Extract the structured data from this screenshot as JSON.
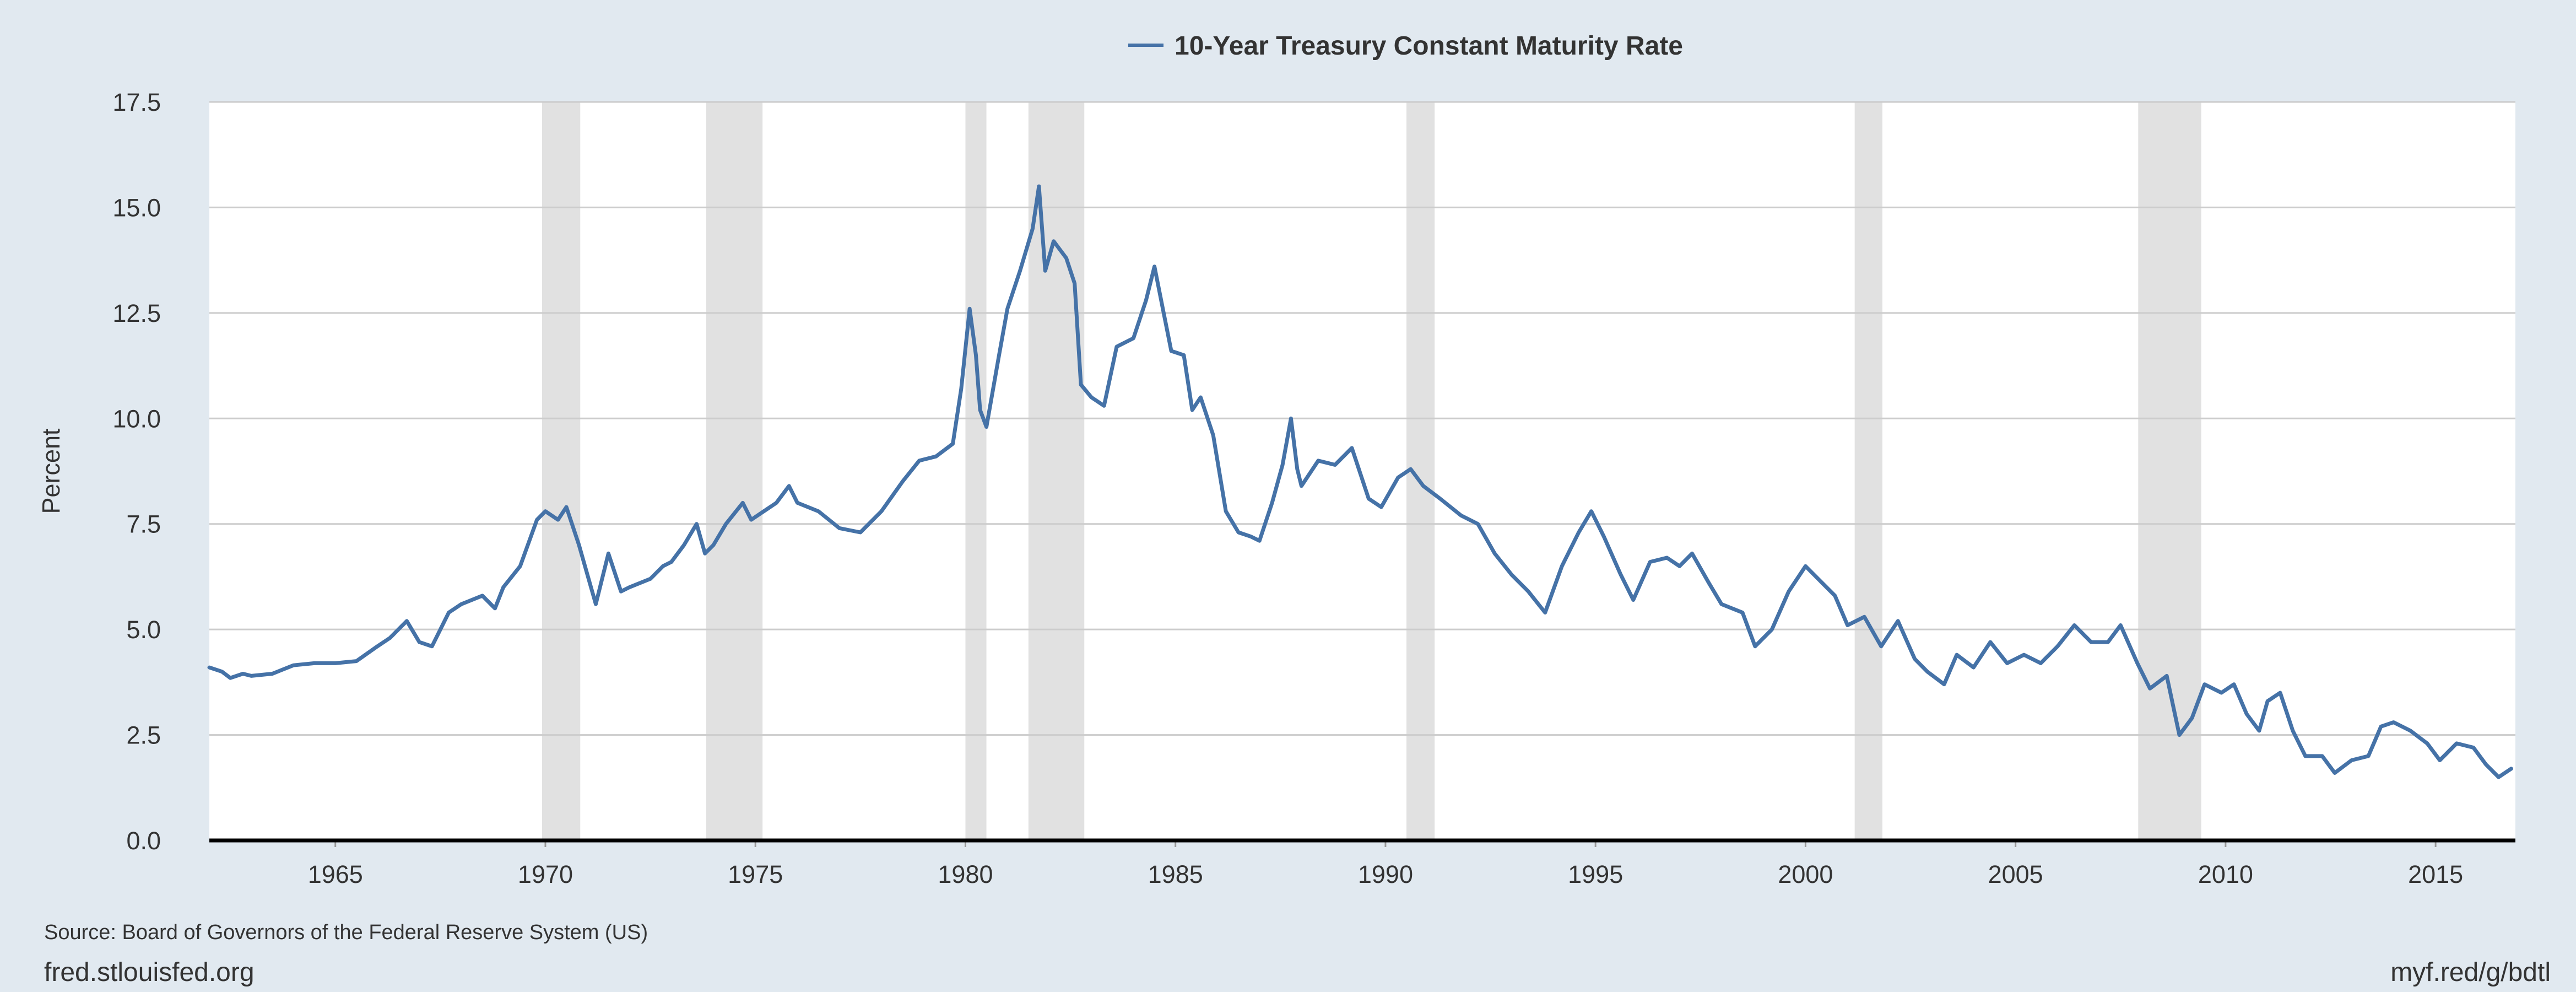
{
  "chart_data": {
    "type": "line",
    "title": "",
    "legend": {
      "label": "10-Year Treasury Constant Maturity Rate",
      "placement": "top-center"
    },
    "series": [
      {
        "name": "10-Year Treasury Constant Maturity Rate",
        "color": "#4572a7",
        "points": [
          [
            1962.0,
            4.1
          ],
          [
            1962.3,
            4.0
          ],
          [
            1962.5,
            3.85
          ],
          [
            1962.8,
            3.95
          ],
          [
            1963.0,
            3.9
          ],
          [
            1963.5,
            3.95
          ],
          [
            1964.0,
            4.15
          ],
          [
            1964.5,
            4.2
          ],
          [
            1965.0,
            4.2
          ],
          [
            1965.5,
            4.25
          ],
          [
            1966.0,
            4.6
          ],
          [
            1966.3,
            4.8
          ],
          [
            1966.7,
            5.2
          ],
          [
            1967.0,
            4.7
          ],
          [
            1967.3,
            4.6
          ],
          [
            1967.7,
            5.4
          ],
          [
            1968.0,
            5.6
          ],
          [
            1968.5,
            5.8
          ],
          [
            1968.8,
            5.5
          ],
          [
            1969.0,
            6.0
          ],
          [
            1969.4,
            6.5
          ],
          [
            1969.8,
            7.6
          ],
          [
            1970.0,
            7.8
          ],
          [
            1970.3,
            7.6
          ],
          [
            1970.5,
            7.9
          ],
          [
            1970.8,
            7.0
          ],
          [
            1971.0,
            6.3
          ],
          [
            1971.2,
            5.6
          ],
          [
            1971.5,
            6.8
          ],
          [
            1971.8,
            5.9
          ],
          [
            1972.0,
            6.0
          ],
          [
            1972.5,
            6.2
          ],
          [
            1972.8,
            6.5
          ],
          [
            1973.0,
            6.6
          ],
          [
            1973.3,
            7.0
          ],
          [
            1973.6,
            7.5
          ],
          [
            1973.8,
            6.8
          ],
          [
            1974.0,
            7.0
          ],
          [
            1974.3,
            7.5
          ],
          [
            1974.7,
            8.0
          ],
          [
            1974.9,
            7.6
          ],
          [
            1975.2,
            7.8
          ],
          [
            1975.5,
            8.0
          ],
          [
            1975.8,
            8.4
          ],
          [
            1976.0,
            8.0
          ],
          [
            1976.5,
            7.8
          ],
          [
            1977.0,
            7.4
          ],
          [
            1977.5,
            7.3
          ],
          [
            1978.0,
            7.8
          ],
          [
            1978.5,
            8.5
          ],
          [
            1978.9,
            9.0
          ],
          [
            1979.3,
            9.1
          ],
          [
            1979.7,
            9.4
          ],
          [
            1979.9,
            10.7
          ],
          [
            1980.1,
            12.6
          ],
          [
            1980.25,
            11.5
          ],
          [
            1980.35,
            10.2
          ],
          [
            1980.5,
            9.8
          ],
          [
            1980.8,
            11.5
          ],
          [
            1981.0,
            12.6
          ],
          [
            1981.3,
            13.5
          ],
          [
            1981.6,
            14.5
          ],
          [
            1981.75,
            15.5
          ],
          [
            1981.9,
            13.5
          ],
          [
            1982.1,
            14.2
          ],
          [
            1982.4,
            13.8
          ],
          [
            1982.6,
            13.2
          ],
          [
            1982.75,
            10.8
          ],
          [
            1983.0,
            10.5
          ],
          [
            1983.3,
            10.3
          ],
          [
            1983.6,
            11.7
          ],
          [
            1984.0,
            11.9
          ],
          [
            1984.3,
            12.8
          ],
          [
            1984.5,
            13.6
          ],
          [
            1984.7,
            12.6
          ],
          [
            1984.9,
            11.6
          ],
          [
            1985.2,
            11.5
          ],
          [
            1985.4,
            10.2
          ],
          [
            1985.6,
            10.5
          ],
          [
            1985.9,
            9.6
          ],
          [
            1986.2,
            7.8
          ],
          [
            1986.5,
            7.3
          ],
          [
            1986.8,
            7.2
          ],
          [
            1987.0,
            7.1
          ],
          [
            1987.3,
            8.0
          ],
          [
            1987.55,
            8.9
          ],
          [
            1987.75,
            10.0
          ],
          [
            1987.9,
            8.8
          ],
          [
            1988.0,
            8.4
          ],
          [
            1988.4,
            9.0
          ],
          [
            1988.8,
            8.9
          ],
          [
            1989.2,
            9.3
          ],
          [
            1989.6,
            8.1
          ],
          [
            1989.9,
            7.9
          ],
          [
            1990.3,
            8.6
          ],
          [
            1990.6,
            8.8
          ],
          [
            1990.9,
            8.4
          ],
          [
            1991.3,
            8.1
          ],
          [
            1991.8,
            7.7
          ],
          [
            1992.2,
            7.5
          ],
          [
            1992.6,
            6.8
          ],
          [
            1993.0,
            6.3
          ],
          [
            1993.4,
            5.9
          ],
          [
            1993.8,
            5.4
          ],
          [
            1994.2,
            6.5
          ],
          [
            1994.6,
            7.3
          ],
          [
            1994.9,
            7.8
          ],
          [
            1995.2,
            7.2
          ],
          [
            1995.6,
            6.3
          ],
          [
            1995.9,
            5.7
          ],
          [
            1996.3,
            6.6
          ],
          [
            1996.7,
            6.7
          ],
          [
            1997.0,
            6.5
          ],
          [
            1997.3,
            6.8
          ],
          [
            1997.7,
            6.1
          ],
          [
            1998.0,
            5.6
          ],
          [
            1998.5,
            5.4
          ],
          [
            1998.8,
            4.6
          ],
          [
            1999.2,
            5.0
          ],
          [
            1999.6,
            5.9
          ],
          [
            2000.0,
            6.5
          ],
          [
            2000.3,
            6.2
          ],
          [
            2000.7,
            5.8
          ],
          [
            2001.0,
            5.1
          ],
          [
            2001.4,
            5.3
          ],
          [
            2001.8,
            4.6
          ],
          [
            2002.2,
            5.2
          ],
          [
            2002.6,
            4.3
          ],
          [
            2002.9,
            4.0
          ],
          [
            2003.3,
            3.7
          ],
          [
            2003.6,
            4.4
          ],
          [
            2004.0,
            4.1
          ],
          [
            2004.4,
            4.7
          ],
          [
            2004.8,
            4.2
          ],
          [
            2005.2,
            4.4
          ],
          [
            2005.6,
            4.2
          ],
          [
            2006.0,
            4.6
          ],
          [
            2006.4,
            5.1
          ],
          [
            2006.8,
            4.7
          ],
          [
            2007.2,
            4.7
          ],
          [
            2007.5,
            5.1
          ],
          [
            2007.9,
            4.2
          ],
          [
            2008.2,
            3.6
          ],
          [
            2008.6,
            3.9
          ],
          [
            2008.9,
            2.5
          ],
          [
            2009.2,
            2.9
          ],
          [
            2009.5,
            3.7
          ],
          [
            2009.9,
            3.5
          ],
          [
            2010.2,
            3.7
          ],
          [
            2010.5,
            3.0
          ],
          [
            2010.8,
            2.6
          ],
          [
            2011.0,
            3.3
          ],
          [
            2011.3,
            3.5
          ],
          [
            2011.6,
            2.6
          ],
          [
            2011.9,
            2.0
          ],
          [
            2012.3,
            2.0
          ],
          [
            2012.6,
            1.6
          ],
          [
            2013.0,
            1.9
          ],
          [
            2013.4,
            2.0
          ],
          [
            2013.7,
            2.7
          ],
          [
            2014.0,
            2.8
          ],
          [
            2014.4,
            2.6
          ],
          [
            2014.8,
            2.3
          ],
          [
            2015.1,
            1.9
          ],
          [
            2015.5,
            2.3
          ],
          [
            2015.9,
            2.2
          ],
          [
            2016.2,
            1.8
          ],
          [
            2016.5,
            1.5
          ],
          [
            2016.8,
            1.7
          ]
        ]
      }
    ],
    "recessions": [
      [
        1969.92,
        1970.83
      ],
      [
        1973.83,
        1975.17
      ],
      [
        1980.0,
        1980.5
      ],
      [
        1981.5,
        1982.83
      ],
      [
        1990.5,
        1991.17
      ],
      [
        2001.17,
        2001.83
      ],
      [
        2007.92,
        2009.42
      ]
    ],
    "xlim": [
      1962.0,
      2016.9
    ],
    "ylim": [
      0,
      17.5
    ],
    "xticks": [
      1965,
      1970,
      1975,
      1980,
      1985,
      1990,
      1995,
      2000,
      2005,
      2010,
      2015
    ],
    "xtick_labels": [
      "1965",
      "1970",
      "1975",
      "1980",
      "1985",
      "1990",
      "1995",
      "2000",
      "2005",
      "2010",
      "2015"
    ],
    "yticks": [
      0,
      2.5,
      5,
      7.5,
      10,
      12.5,
      15,
      17.5
    ],
    "ytick_labels": [
      "0.0",
      "2.5",
      "5.0",
      "7.5",
      "10.0",
      "12.5",
      "15.0",
      "17.5"
    ],
    "xlabel": "",
    "ylabel": "Percent",
    "grid": true,
    "colors": {
      "line": "#4572a7",
      "grid": "#cccccc",
      "recession": "#e1e1e1",
      "plot_bg": "#ffffff",
      "axis": "#000000"
    }
  },
  "source": "Source: Board of Governors of the Federal Reserve System (US)",
  "footer": {
    "left": "fred.stlouisfed.org",
    "right": "myf.red/g/bdtl"
  }
}
